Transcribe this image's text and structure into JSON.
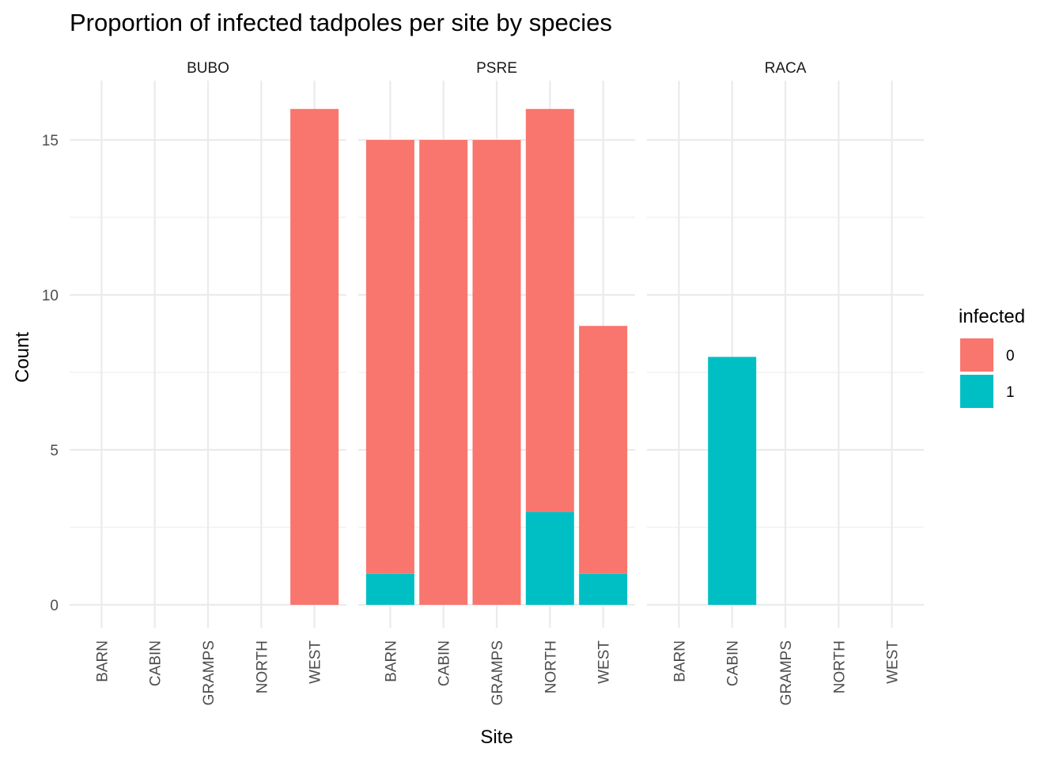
{
  "chart_data": {
    "type": "bar",
    "stacked": true,
    "faceted": true,
    "title": "Proportion of infected tadpoles per site by species",
    "xlabel": "Site",
    "ylabel": "Count",
    "ylim": [
      0,
      16.8
    ],
    "y_ticks": [
      0,
      5,
      10,
      15
    ],
    "categories": [
      "BARN",
      "CABIN",
      "GRAMPS",
      "NORTH",
      "WEST"
    ],
    "legend": {
      "title": "infected",
      "position": "right",
      "entries": [
        {
          "label": "0",
          "color": "#F8766D"
        },
        {
          "label": "1",
          "color": "#00BFC4"
        }
      ]
    },
    "facets": [
      {
        "name": "BUBO",
        "series": [
          {
            "name": "0",
            "values": [
              0,
              0,
              0,
              0,
              16
            ]
          },
          {
            "name": "1",
            "values": [
              0,
              0,
              0,
              0,
              0
            ]
          }
        ]
      },
      {
        "name": "PSRE",
        "series": [
          {
            "name": "0",
            "values": [
              14,
              15,
              15,
              13,
              8
            ]
          },
          {
            "name": "1",
            "values": [
              1,
              0,
              0,
              3,
              1
            ]
          }
        ]
      },
      {
        "name": "RACA",
        "series": [
          {
            "name": "0",
            "values": [
              0,
              0,
              0,
              0,
              0
            ]
          },
          {
            "name": "1",
            "values": [
              0,
              8,
              0,
              0,
              0
            ]
          }
        ]
      }
    ],
    "grid": true,
    "colors": {
      "infected_0": "#F8766D",
      "infected_1": "#00BFC4"
    }
  }
}
